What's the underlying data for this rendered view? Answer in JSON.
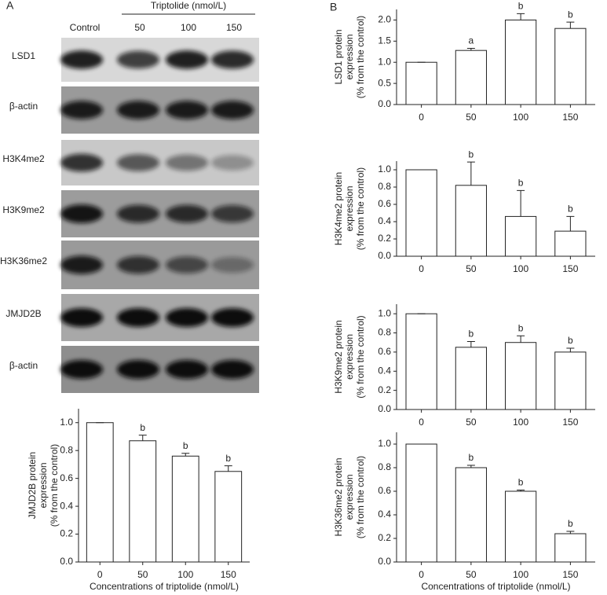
{
  "panel_labels": [
    "A",
    "B"
  ],
  "blot": {
    "header": "Triptolide (nmol/L)",
    "lanes": [
      "Control",
      "50",
      "100",
      "150"
    ],
    "rows": [
      "LSD1",
      "β-actin",
      "H3K4me2",
      "H3K9me2",
      "H3K36me2",
      "JMJD2B",
      "β-actin"
    ]
  },
  "chart_data": [
    {
      "type": "bar",
      "ylabel": [
        "JMJD2B protein",
        "expression",
        "(% from the control)"
      ],
      "xlabel": "Concentrations of triptolide (nmol/L)",
      "categories": [
        "0",
        "50",
        "100",
        "150"
      ],
      "values": [
        1.0,
        0.87,
        0.76,
        0.65
      ],
      "errors": [
        0,
        0.04,
        0.02,
        0.04
      ],
      "annotations": [
        null,
        "b",
        "b",
        "b"
      ],
      "color": "#ffffff",
      "ylim": [
        0,
        1.1
      ],
      "yticks": [
        {
          "value": 0,
          "label": "0.0"
        },
        {
          "value": 0.2,
          "label": "0.2"
        },
        {
          "value": 0.4,
          "label": "0.4"
        },
        {
          "value": 0.6,
          "label": "0.6"
        },
        {
          "value": 0.8,
          "label": "0.8"
        },
        {
          "value": 1,
          "label": "1.0"
        }
      ]
    },
    {
      "type": "bar",
      "ylabel": [
        "LSD1 protein",
        "expression",
        "(% from the control)"
      ],
      "categories": [
        "0",
        "50",
        "100",
        "150"
      ],
      "values": [
        1.0,
        1.28,
        2.0,
        1.8
      ],
      "errors": [
        0,
        0.05,
        0.15,
        0.15
      ],
      "annotations": [
        null,
        "a",
        "b",
        "b"
      ],
      "color": "#ffffff",
      "ylim": [
        0,
        2.25
      ],
      "yticks": [
        {
          "value": 0,
          "label": "0.0"
        },
        {
          "value": 0.5,
          "label": "0.5"
        },
        {
          "value": 1,
          "label": "1.0"
        },
        {
          "value": 1.5,
          "label": "1.5"
        },
        {
          "value": 2,
          "label": "2.0"
        }
      ]
    },
    {
      "type": "bar",
      "ylabel": [
        "H3K4me2 protein",
        "expression",
        "(% from the control)"
      ],
      "categories": [
        "0",
        "50",
        "100",
        "150"
      ],
      "values": [
        1.0,
        0.82,
        0.46,
        0.29
      ],
      "errors": [
        0,
        0.27,
        0.3,
        0.17
      ],
      "annotations": [
        null,
        "b",
        "b",
        "b"
      ],
      "color": "#ffffff",
      "ylim": [
        0,
        1.1
      ],
      "yticks": [
        {
          "value": 0,
          "label": "0.0"
        },
        {
          "value": 0.2,
          "label": "0.2"
        },
        {
          "value": 0.4,
          "label": "0.4"
        },
        {
          "value": 0.6,
          "label": "0.6"
        },
        {
          "value": 0.8,
          "label": "0.8"
        },
        {
          "value": 1,
          "label": "1.0"
        }
      ]
    },
    {
      "type": "bar",
      "ylabel": [
        "H3K9me2 protein",
        "expression",
        "(% from the control)"
      ],
      "categories": [
        "0",
        "50",
        "100",
        "150"
      ],
      "values": [
        1.0,
        0.65,
        0.7,
        0.6
      ],
      "errors": [
        0,
        0.06,
        0.07,
        0.04
      ],
      "annotations": [
        null,
        "b",
        "b",
        "b"
      ],
      "color": "#ffffff",
      "ylim": [
        0,
        1.1
      ],
      "yticks": [
        {
          "value": 0,
          "label": "0.0"
        },
        {
          "value": 0.2,
          "label": "0.2"
        },
        {
          "value": 0.4,
          "label": "0.4"
        },
        {
          "value": 0.6,
          "label": "0.6"
        },
        {
          "value": 0.8,
          "label": "0.8"
        },
        {
          "value": 1,
          "label": "1.0"
        }
      ]
    },
    {
      "type": "bar",
      "ylabel": [
        "H3K36me2 protein",
        "expression",
        "(% from the control)"
      ],
      "xlabel": "Concentrations of triptolide (nmol/L)",
      "categories": [
        "0",
        "50",
        "100",
        "150"
      ],
      "values": [
        1.0,
        0.8,
        0.6,
        0.24
      ],
      "errors": [
        0,
        0.02,
        0.01,
        0.02
      ],
      "annotations": [
        null,
        "b",
        "b",
        "b"
      ],
      "color": "#ffffff",
      "ylim": [
        0,
        1.1
      ],
      "yticks": [
        {
          "value": 0,
          "label": "0.0"
        },
        {
          "value": 0.2,
          "label": "0.2"
        },
        {
          "value": 0.4,
          "label": "0.4"
        },
        {
          "value": 0.6,
          "label": "0.6"
        },
        {
          "value": 0.8,
          "label": "0.8"
        },
        {
          "value": 1,
          "label": "1.0"
        }
      ]
    }
  ]
}
